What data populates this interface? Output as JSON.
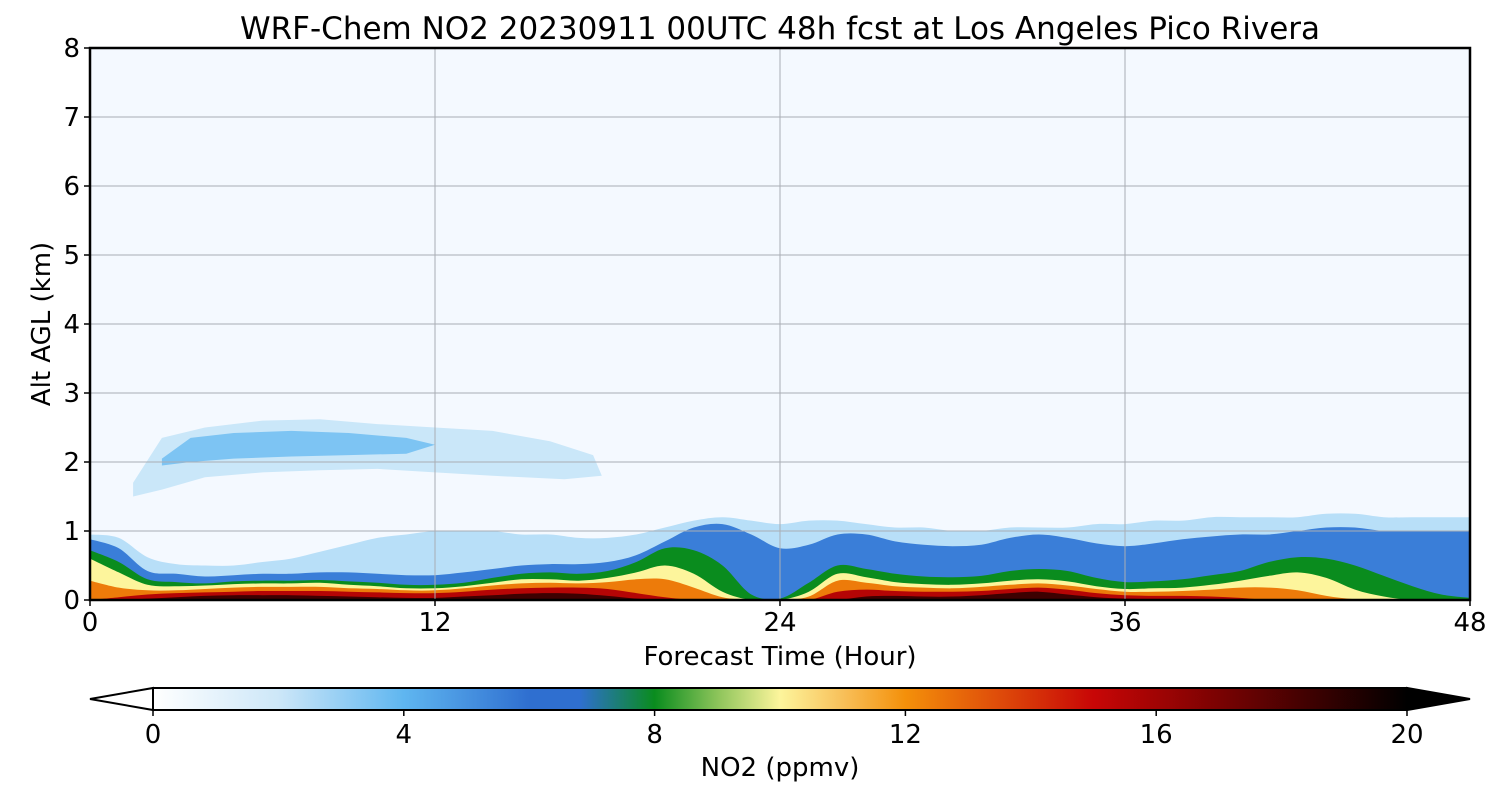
{
  "chart_data": {
    "type": "heatmap",
    "title": "WRF-Chem NO2  20230911 00UTC 48h fcst at Los Angeles Pico Rivera",
    "xlabel": "Forecast Time (Hour)",
    "ylabel": "Alt AGL (km)",
    "xlim": [
      0,
      48
    ],
    "ylim": [
      0,
      8
    ],
    "x_ticks": [
      "0",
      "12",
      "24",
      "36",
      "48"
    ],
    "y_ticks": [
      "0",
      "1",
      "2",
      "3",
      "4",
      "5",
      "6",
      "7",
      "8"
    ],
    "grid": true,
    "colorbar": {
      "label": "NO2  (ppmv)",
      "range": [
        0,
        20
      ],
      "ticks": [
        "0",
        "4",
        "8",
        "12",
        "16",
        "20"
      ],
      "extend": "both",
      "orientation": "horizontal",
      "placement": "bottom"
    },
    "colors": {
      "background": "#f4f9ff",
      "low_blue": "#5fb6f0",
      "mid_blue": "#2f6fd0",
      "green": "#0a8c1e",
      "yellow": "#fdf59c",
      "orange": "#f4900a",
      "red": "#c80606",
      "dark": "#000000"
    },
    "layers": [
      {
        "name": "layer-top",
        "value": 1.5,
        "h": [
          0.95,
          0.9,
          0.62,
          0.52,
          0.5,
          0.5,
          0.55,
          0.6,
          0.7,
          0.8,
          0.9,
          0.95,
          1.0,
          1.0,
          1.0,
          0.95,
          0.95,
          0.9,
          0.9,
          0.95,
          1.05,
          1.15,
          1.2,
          1.15,
          1.1,
          1.15,
          1.15,
          1.1,
          1.05,
          1.05,
          1.0,
          1.0,
          1.05,
          1.05,
          1.05,
          1.1,
          1.1,
          1.15,
          1.15,
          1.2,
          1.2,
          1.2,
          1.2,
          1.25,
          1.25,
          1.2,
          1.2,
          1.2,
          1.2
        ]
      },
      {
        "name": "layer-blue",
        "value": 5,
        "h": [
          0.88,
          0.75,
          0.42,
          0.38,
          0.34,
          0.36,
          0.38,
          0.38,
          0.4,
          0.4,
          0.38,
          0.36,
          0.36,
          0.4,
          0.45,
          0.5,
          0.52,
          0.52,
          0.55,
          0.65,
          0.85,
          1.05,
          1.1,
          0.95,
          0.75,
          0.8,
          0.95,
          0.95,
          0.85,
          0.8,
          0.78,
          0.8,
          0.9,
          0.95,
          0.9,
          0.82,
          0.78,
          0.82,
          0.88,
          0.92,
          0.95,
          0.95,
          1.0,
          1.05,
          1.05,
          1.0,
          1.0,
          1.0,
          1.0
        ]
      },
      {
        "name": "layer-green",
        "value": 8,
        "h": [
          0.72,
          0.55,
          0.3,
          0.26,
          0.24,
          0.27,
          0.28,
          0.28,
          0.29,
          0.27,
          0.25,
          0.22,
          0.22,
          0.25,
          0.32,
          0.38,
          0.4,
          0.38,
          0.42,
          0.55,
          0.75,
          0.72,
          0.5,
          0.08,
          0.02,
          0.25,
          0.5,
          0.45,
          0.38,
          0.34,
          0.33,
          0.35,
          0.42,
          0.45,
          0.42,
          0.32,
          0.26,
          0.27,
          0.3,
          0.36,
          0.42,
          0.55,
          0.62,
          0.6,
          0.5,
          0.35,
          0.2,
          0.08,
          0.03
        ]
      },
      {
        "name": "layer-yellow",
        "value": 10,
        "h": [
          0.6,
          0.4,
          0.22,
          0.2,
          0.21,
          0.23,
          0.24,
          0.24,
          0.25,
          0.22,
          0.2,
          0.17,
          0.17,
          0.2,
          0.25,
          0.3,
          0.3,
          0.28,
          0.32,
          0.4,
          0.5,
          0.38,
          0.12,
          0.0,
          0.0,
          0.12,
          0.38,
          0.33,
          0.26,
          0.23,
          0.22,
          0.24,
          0.28,
          0.3,
          0.27,
          0.2,
          0.16,
          0.17,
          0.18,
          0.22,
          0.28,
          0.35,
          0.4,
          0.32,
          0.15,
          0.05,
          0.0,
          0.0,
          0.0
        ]
      },
      {
        "name": "layer-orange",
        "value": 12.5,
        "h": [
          0.28,
          0.18,
          0.14,
          0.14,
          0.16,
          0.18,
          0.19,
          0.19,
          0.19,
          0.17,
          0.16,
          0.14,
          0.14,
          0.17,
          0.21,
          0.24,
          0.25,
          0.24,
          0.26,
          0.3,
          0.3,
          0.18,
          0.04,
          0.0,
          0.0,
          0.05,
          0.28,
          0.25,
          0.2,
          0.18,
          0.17,
          0.19,
          0.22,
          0.24,
          0.21,
          0.16,
          0.12,
          0.12,
          0.13,
          0.15,
          0.18,
          0.18,
          0.14,
          0.06,
          0.01,
          0.0,
          0.0,
          0.0,
          0.0
        ]
      },
      {
        "name": "layer-red",
        "value": 15.5,
        "h": [
          0.0,
          0.04,
          0.08,
          0.1,
          0.11,
          0.12,
          0.13,
          0.13,
          0.13,
          0.12,
          0.11,
          0.1,
          0.1,
          0.12,
          0.15,
          0.17,
          0.18,
          0.18,
          0.16,
          0.1,
          0.04,
          0.0,
          0.0,
          0.0,
          0.0,
          0.0,
          0.12,
          0.15,
          0.13,
          0.12,
          0.12,
          0.13,
          0.16,
          0.18,
          0.15,
          0.1,
          0.07,
          0.06,
          0.06,
          0.05,
          0.03,
          0.0,
          0.0,
          0.0,
          0.0,
          0.0,
          0.0,
          0.0,
          0.0
        ]
      },
      {
        "name": "layer-dark",
        "value": 18.5,
        "h": [
          0.0,
          0.0,
          0.02,
          0.04,
          0.06,
          0.07,
          0.07,
          0.07,
          0.06,
          0.05,
          0.04,
          0.03,
          0.03,
          0.05,
          0.07,
          0.09,
          0.1,
          0.09,
          0.06,
          0.02,
          0.0,
          0.0,
          0.0,
          0.0,
          0.0,
          0.0,
          0.0,
          0.05,
          0.06,
          0.05,
          0.05,
          0.07,
          0.1,
          0.12,
          0.08,
          0.04,
          0.02,
          0.01,
          0.0,
          0.0,
          0.0,
          0.0,
          0.0,
          0.0,
          0.0,
          0.0,
          0.0,
          0.0,
          0.0
        ]
      }
    ],
    "upper_plume": [
      {
        "name": "plume-outer",
        "value": 1.2,
        "x": [
          1.5,
          2.5,
          4,
          6,
          8,
          10,
          12,
          14,
          16,
          17.5,
          17.8,
          16.5,
          14,
          12,
          10,
          8,
          6,
          4,
          2.5,
          1.5
        ],
        "y": [
          1.7,
          2.35,
          2.5,
          2.6,
          2.62,
          2.55,
          2.5,
          2.45,
          2.3,
          2.1,
          1.8,
          1.75,
          1.8,
          1.85,
          1.9,
          1.88,
          1.85,
          1.78,
          1.6,
          1.5
        ]
      },
      {
        "name": "plume-core",
        "value": 2.5,
        "x": [
          2.5,
          3.5,
          5,
          7,
          9,
          11,
          12,
          11,
          9,
          7,
          5,
          3.5,
          2.5
        ],
        "y": [
          2.05,
          2.35,
          2.42,
          2.45,
          2.42,
          2.35,
          2.25,
          2.12,
          2.1,
          2.08,
          2.05,
          2.0,
          1.95
        ]
      }
    ]
  }
}
